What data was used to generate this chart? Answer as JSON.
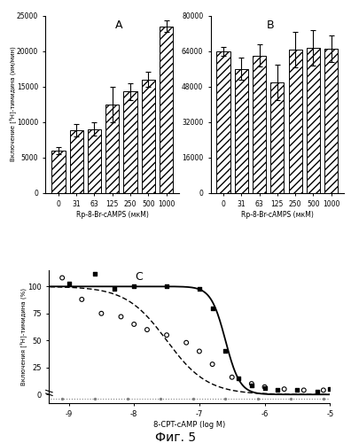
{
  "panel_A": {
    "label": "A",
    "categories": [
      "0",
      "31",
      "63",
      "125",
      "250",
      "500",
      "1000"
    ],
    "values": [
      6000,
      8800,
      9000,
      12500,
      14300,
      16000,
      23500
    ],
    "errors": [
      500,
      900,
      900,
      2500,
      1200,
      1100,
      800
    ],
    "ylabel": "Включение [³H]-тимидина (им/мин)",
    "xlabel": "Rp-8-Br-cAMPS (мкМ)",
    "ylim": [
      0,
      25000
    ],
    "yticks": [
      0,
      5000,
      10000,
      15000,
      20000,
      25000
    ]
  },
  "panel_B": {
    "label": "B",
    "categories": [
      "0",
      "31",
      "63",
      "125",
      "250",
      "500",
      "1000"
    ],
    "values": [
      64000,
      56000,
      62000,
      50000,
      64500,
      65500,
      65000
    ],
    "errors": [
      2000,
      5000,
      5000,
      8000,
      8000,
      8000,
      6000
    ],
    "ylabel": "",
    "xlabel": "Rp-8-Br-cAMPS (мкМ)",
    "ylim": [
      0,
      80000
    ],
    "yticks": [
      0,
      16000,
      32000,
      48000,
      64000,
      80000
    ]
  },
  "panel_C": {
    "label": "C",
    "ylabel": "Включения [³H]-тимидина (%)",
    "xlabel": "8-CPT-cAMP (log M)",
    "xlim": [
      -9.3,
      -5.0
    ],
    "ylim": [
      -8,
      115
    ],
    "yticks": [
      0,
      25,
      50,
      75,
      100
    ],
    "xticks": [
      -9,
      -8,
      -7,
      -6,
      -5
    ],
    "solid_x0": -6.6,
    "solid_k": 9.0,
    "dashed_x0": -7.5,
    "dashed_k": 3.2,
    "solid_dots_x": [
      -9.0,
      -8.6,
      -8.3,
      -8.0,
      -7.5,
      -7.0,
      -6.8,
      -6.6,
      -6.4,
      -6.2,
      -6.0,
      -5.8,
      -5.5,
      -5.2,
      -5.0
    ],
    "solid_dots_y": [
      103,
      112,
      98,
      100,
      100,
      98,
      80,
      40,
      15,
      8,
      6,
      4,
      4,
      3,
      5
    ],
    "open_dots_x": [
      -9.1,
      -8.8,
      -8.5,
      -8.2,
      -8.0,
      -7.8,
      -7.5,
      -7.2,
      -7.0,
      -6.8,
      -6.5,
      -6.2,
      -6.0,
      -5.7,
      -5.4,
      -5.1
    ],
    "open_dots_y": [
      108,
      88,
      75,
      72,
      65,
      60,
      55,
      48,
      40,
      28,
      16,
      10,
      7,
      5,
      4,
      4
    ],
    "flat_dots_x": [
      -9.1,
      -8.6,
      -8.1,
      -7.6,
      -7.1,
      -6.6,
      -6.1,
      -5.6,
      -5.1
    ],
    "flat_dots_y": [
      -4,
      -4,
      -4,
      -4,
      -4,
      -4,
      -4,
      -4,
      -4
    ]
  },
  "fig_label": "Фиг. 5",
  "bar_hatch": "////",
  "bar_facecolor": "white",
  "bar_edgecolor": "black"
}
